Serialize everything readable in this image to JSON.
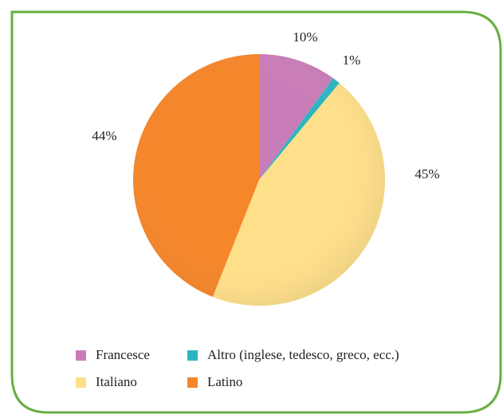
{
  "chart_data": {
    "type": "pie",
    "categories": [
      "Francesce",
      "Altro (inglese, tedesco, greco, ecc.)",
      "Italiano",
      "Latino"
    ],
    "values": [
      10,
      1,
      45,
      44
    ],
    "value_labels": [
      "10%",
      "1%",
      "45%",
      "44%"
    ],
    "colors": [
      "#c97db8",
      "#2db6c1",
      "#ffe08a",
      "#f5862a"
    ]
  }
}
